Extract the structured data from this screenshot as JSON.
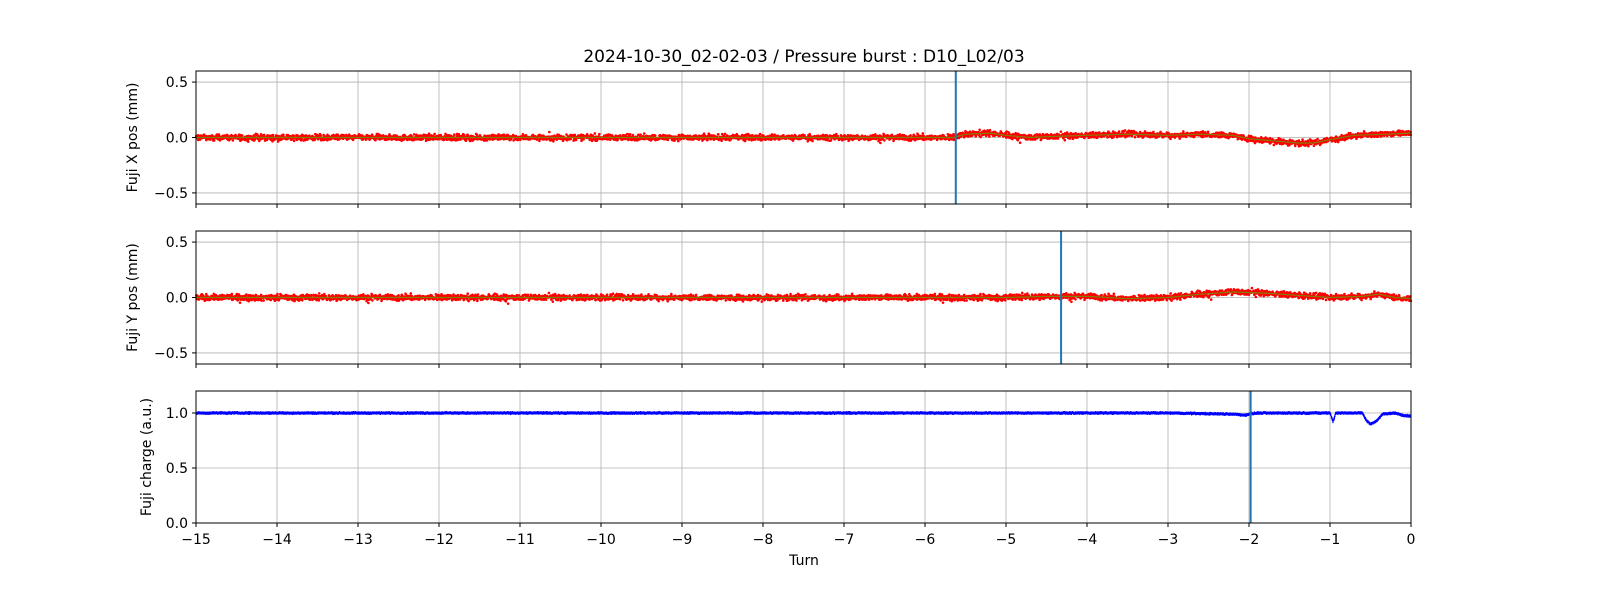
{
  "chart_data": {
    "type": "scatter",
    "title": "2024-10-30_02-02-03 / Pressure burst : D10_L02/03",
    "xlabel": "Turn",
    "xlim": [
      -15,
      0
    ],
    "x_ticks": [
      -15,
      -14,
      -13,
      -12,
      -11,
      -10,
      -9,
      -8,
      -7,
      -6,
      -5,
      -4,
      -3,
      -2,
      -1,
      0
    ],
    "grid": true,
    "panels": [
      {
        "ylabel": "Fuji X pos (mm)",
        "ylim": [
          -0.6,
          0.6
        ],
        "y_ticks": [
          -0.5,
          0.0,
          0.5
        ],
        "marker_x": -5.62,
        "points_color": "#ff0000",
        "trend_color": "#808000",
        "marker_color": "#1f77b4",
        "trend": [
          [
            -15,
            0.0
          ],
          [
            -14,
            0.0
          ],
          [
            -13,
            0.0
          ],
          [
            -12,
            0.0
          ],
          [
            -11,
            0.0
          ],
          [
            -10,
            0.0
          ],
          [
            -9,
            0.0
          ],
          [
            -8,
            0.0
          ],
          [
            -7,
            0.0
          ],
          [
            -6,
            0.0
          ],
          [
            -5.65,
            0.0
          ],
          [
            -5.5,
            0.03
          ],
          [
            -5.2,
            0.04
          ],
          [
            -5.0,
            0.02
          ],
          [
            -4.7,
            0.0
          ],
          [
            -4.4,
            0.01
          ],
          [
            -4.0,
            0.02
          ],
          [
            -3.5,
            0.03
          ],
          [
            -3.0,
            0.02
          ],
          [
            -2.6,
            0.03
          ],
          [
            -2.2,
            0.02
          ],
          [
            -2.0,
            -0.01
          ],
          [
            -1.7,
            -0.03
          ],
          [
            -1.4,
            -0.05
          ],
          [
            -1.2,
            -0.05
          ],
          [
            -1.0,
            -0.02
          ],
          [
            -0.7,
            0.02
          ],
          [
            -0.3,
            0.03
          ],
          [
            0,
            0.04
          ]
        ]
      },
      {
        "ylabel": "Fuji Y pos (mm)",
        "ylim": [
          -0.6,
          0.6
        ],
        "y_ticks": [
          -0.5,
          0.0,
          0.5
        ],
        "marker_x": -4.32,
        "points_color": "#ff0000",
        "trend_color": "#808000",
        "marker_color": "#1f77b4",
        "trend": [
          [
            -15,
            0.0
          ],
          [
            -14,
            0.0
          ],
          [
            -13,
            0.0
          ],
          [
            -12,
            0.0
          ],
          [
            -11,
            0.0
          ],
          [
            -10,
            0.0
          ],
          [
            -9,
            0.0
          ],
          [
            -8,
            0.0
          ],
          [
            -7,
            0.0
          ],
          [
            -6,
            0.0
          ],
          [
            -5,
            0.0
          ],
          [
            -4.5,
            0.01
          ],
          [
            -4.0,
            0.01
          ],
          [
            -3.5,
            -0.01
          ],
          [
            -3.0,
            0.0
          ],
          [
            -2.6,
            0.03
          ],
          [
            -2.2,
            0.05
          ],
          [
            -1.8,
            0.04
          ],
          [
            -1.4,
            0.02
          ],
          [
            -1.0,
            0.0
          ],
          [
            -0.6,
            0.01
          ],
          [
            -0.4,
            0.03
          ],
          [
            -0.2,
            0.0
          ],
          [
            0,
            -0.01
          ]
        ]
      },
      {
        "ylabel": "Fuji charge (a.u.)",
        "ylim": [
          0.0,
          1.2
        ],
        "y_ticks": [
          0.0,
          0.5,
          1.0
        ],
        "marker_x": -1.98,
        "points_color": "#0000ff",
        "marker_color": "#1f77b4",
        "trend": [
          [
            -15,
            1.0
          ],
          [
            -13,
            1.0
          ],
          [
            -11,
            1.0
          ],
          [
            -9,
            1.0
          ],
          [
            -7,
            1.0
          ],
          [
            -5,
            1.0
          ],
          [
            -3,
            1.0
          ],
          [
            -2.2,
            0.99
          ],
          [
            -2.05,
            0.98
          ],
          [
            -2.0,
            0.99
          ],
          [
            -1.9,
            1.0
          ],
          [
            -1.0,
            1.0
          ],
          [
            -0.96,
            0.92
          ],
          [
            -0.93,
            1.0
          ],
          [
            -0.6,
            1.0
          ],
          [
            -0.55,
            0.93
          ],
          [
            -0.5,
            0.9
          ],
          [
            -0.42,
            0.93
          ],
          [
            -0.35,
            0.99
          ],
          [
            -0.2,
            1.0
          ],
          [
            -0.1,
            0.98
          ],
          [
            0,
            0.97
          ]
        ]
      }
    ]
  }
}
